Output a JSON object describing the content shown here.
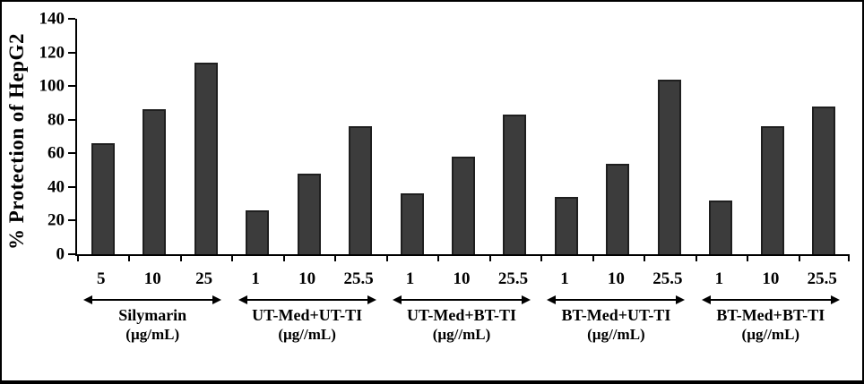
{
  "chart_data": {
    "type": "bar",
    "title": "",
    "ylabel": "% Protection of HepG2",
    "xlabel": "",
    "ylim": [
      0,
      140
    ],
    "yticks": [
      "0",
      "20",
      "40",
      "60",
      "80",
      "100",
      "120",
      "140"
    ],
    "grid": false,
    "legend": "none",
    "bar_color": "#3c3c3c",
    "bar_border_color": "#1f1f1f",
    "groups": [
      {
        "label": "Silymarin",
        "unit": "(µg/mL)",
        "categories": [
          "5",
          "10",
          "25"
        ],
        "values": [
          66,
          86,
          114
        ]
      },
      {
        "label": "UT-Med+UT-TI",
        "unit": "(µg//mL)",
        "categories": [
          "1",
          "10",
          "25.5"
        ],
        "values": [
          26,
          48,
          76
        ]
      },
      {
        "label": "UT-Med+BT-TI",
        "unit": "(µg//mL)",
        "categories": [
          "1",
          "10",
          "25.5"
        ],
        "values": [
          36,
          58,
          83
        ]
      },
      {
        "label": "BT-Med+UT-TI",
        "unit": "(µg//mL)",
        "categories": [
          "1",
          "10",
          "25.5"
        ],
        "values": [
          34,
          54,
          104
        ]
      },
      {
        "label": "BT-Med+BT-TI",
        "unit": "(µg//mL)",
        "categories": [
          "1",
          "10",
          "25.5"
        ],
        "values": [
          32,
          76,
          88
        ]
      }
    ]
  }
}
